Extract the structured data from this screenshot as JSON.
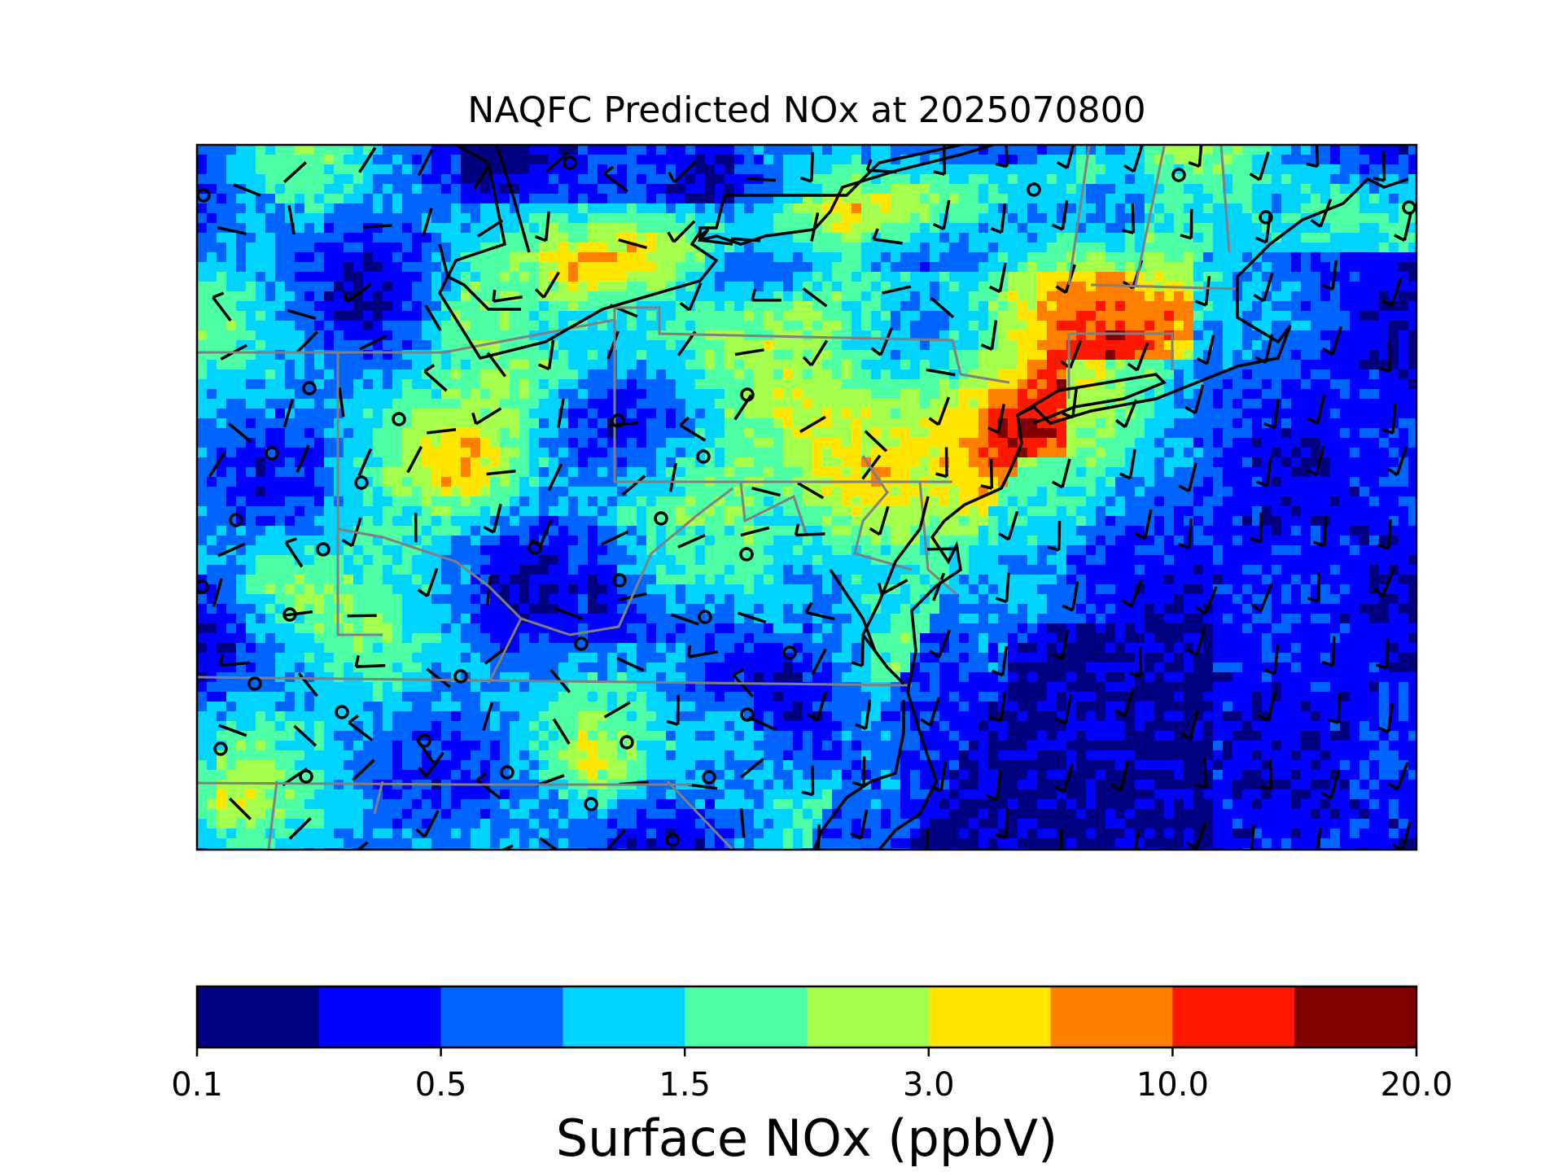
{
  "title": "NAQFC Predicted NOx at 2025070800",
  "colorbar": {
    "label": "Surface NOx (ppbV)",
    "ticks": [
      "0.1",
      "0.5",
      "1.5",
      "3.0",
      "10.0",
      "20.0"
    ],
    "colors": [
      "#000080",
      "#0000ff",
      "#0064ff",
      "#00d4ff",
      "#4dffa5",
      "#a5ff4d",
      "#ffe500",
      "#ff7f00",
      "#ff1800",
      "#800000"
    ]
  },
  "map": {
    "region": "Northeastern United States",
    "borders": {
      "coastline": "#000000",
      "states": "#808080"
    }
  }
}
